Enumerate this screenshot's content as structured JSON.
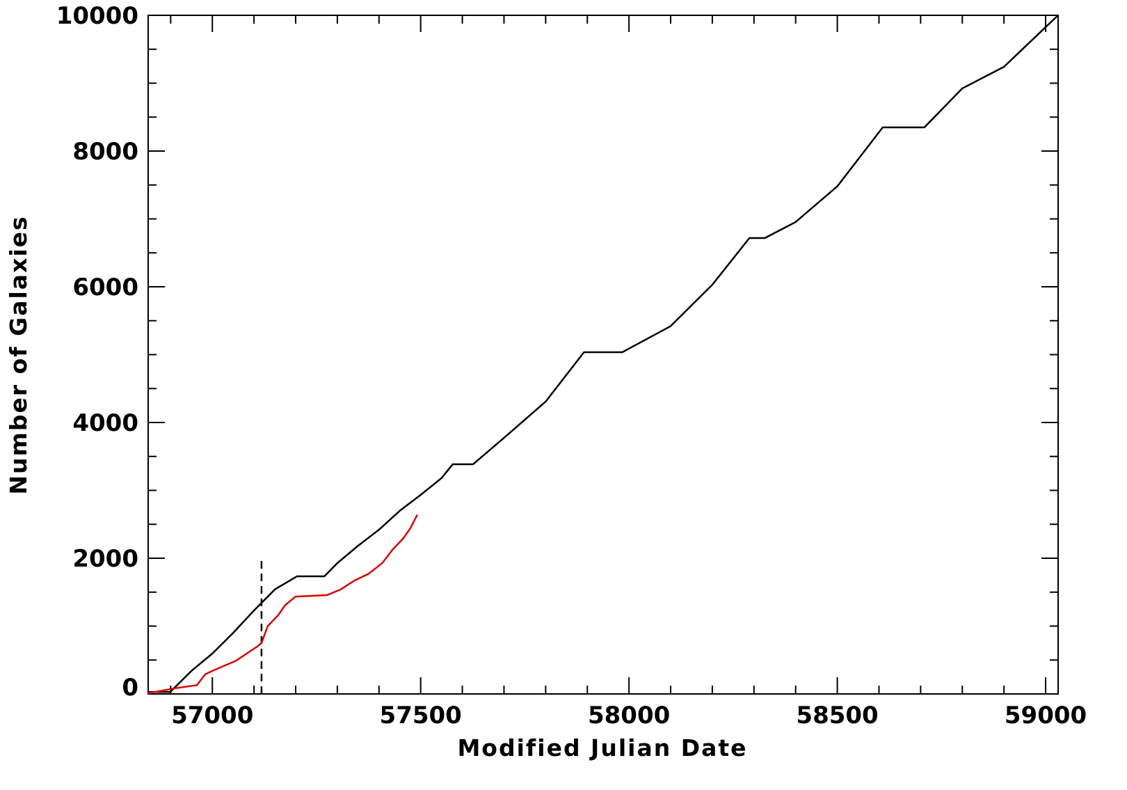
{
  "chart_data": {
    "type": "line",
    "xlabel": "Modified Julian Date",
    "ylabel": "Number of Galaxies",
    "xlim": [
      56846,
      59030
    ],
    "ylim": [
      0,
      10000
    ],
    "xticks": [
      57000,
      57500,
      58000,
      58500,
      59000
    ],
    "yticks": [
      0,
      2000,
      4000,
      6000,
      8000,
      10000
    ],
    "xminorticks": [
      56900,
      57100,
      57200,
      57300,
      57400,
      57600,
      57700,
      57800,
      57900,
      58100,
      58200,
      58300,
      58400,
      58600,
      58700,
      58800,
      58900
    ],
    "yminorticks": [
      500,
      1000,
      1500,
      2500,
      3000,
      3500,
      4500,
      5000,
      5500,
      6500,
      7000,
      7500,
      8500,
      9000,
      9500
    ],
    "grid": false,
    "series": [
      {
        "color": "#000000",
        "x": [
          56846,
          56899,
          56950,
          57000,
          57050,
          57100,
          57150,
          57203,
          57269,
          57300,
          57350,
          57400,
          57450,
          57500,
          57550,
          57577,
          57626,
          57700,
          57800,
          57892,
          57984,
          58100,
          58200,
          58289,
          58326,
          58400,
          58500,
          58609,
          58709,
          58800,
          58900,
          59000,
          59030
        ],
        "values": [
          30,
          30,
          340,
          595,
          900,
          1230,
          1540,
          1733,
          1733,
          1928,
          2185,
          2420,
          2700,
          2933,
          3180,
          3385,
          3385,
          3774,
          4308,
          5036,
          5036,
          5420,
          6030,
          6718,
          6718,
          6954,
          7480,
          8349,
          8349,
          8923,
          9241,
          9826,
          10000
        ]
      },
      {
        "color": "#dd0000",
        "x": [
          56846,
          56906,
          56963,
          56983,
          57000,
          57057,
          57108,
          57118,
          57133,
          57158,
          57175,
          57200,
          57275,
          57308,
          57341,
          57375,
          57408,
          57433,
          57458,
          57475,
          57492
        ],
        "values": [
          10,
          80,
          130,
          290,
          340,
          490,
          700,
          750,
          1000,
          1160,
          1310,
          1435,
          1456,
          1540,
          1670,
          1770,
          1930,
          2130,
          2290,
          2440,
          2640
        ]
      }
    ],
    "reference_line": {
      "x": 57118,
      "y": [
        0,
        2000
      ],
      "color": "#000000",
      "style": "dashed"
    }
  }
}
